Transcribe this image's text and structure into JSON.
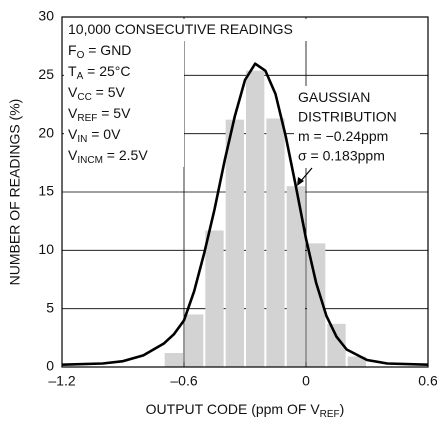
{
  "chart_data": {
    "type": "histogram",
    "ylabel": "NUMBER OF READINGS (%)",
    "xlabel": [
      {
        "t": "OUTPUT CODE (ppm OF V"
      },
      {
        "sub": "REF"
      },
      {
        "t": ")"
      }
    ],
    "bins": [
      -0.7,
      -0.6,
      -0.5,
      -0.4,
      -0.3,
      -0.2,
      -0.1,
      0,
      0.1,
      0.2,
      0.3
    ],
    "values": [
      1.2,
      4.5,
      11.7,
      21.2,
      25.4,
      21.3,
      15.5,
      10.6,
      3.7,
      0.9
    ],
    "color": "#d3d3d3",
    "curve": {
      "color": "#000000",
      "x": [
        -1.2,
        -1.0,
        -0.9,
        -0.8,
        -0.7,
        -0.65,
        -0.6,
        -0.55,
        -0.5,
        -0.45,
        -0.4,
        -0.35,
        -0.3,
        -0.25,
        -0.2,
        -0.15,
        -0.1,
        -0.05,
        0,
        0.05,
        0.1,
        0.15,
        0.2,
        0.3,
        0.4,
        0.6
      ],
      "y": [
        0.2,
        0.3,
        0.5,
        1.0,
        2.0,
        2.8,
        4.0,
        6.5,
        9.8,
        13.5,
        17.7,
        21.5,
        24.6,
        26,
        25.4,
        23.4,
        19.8,
        15.5,
        11,
        7.2,
        4.4,
        2.6,
        1.5,
        0.6,
        0.3,
        0.2
      ]
    },
    "xlim": [
      -1.2,
      0.6
    ],
    "xticks": [
      {
        "value": -1.2,
        "label": "–1.2"
      },
      {
        "value": -0.6,
        "label": "–0.6"
      },
      0,
      0.6
    ],
    "ylim": [
      0,
      30
    ],
    "yticks": [
      0,
      5,
      10,
      15,
      20,
      25,
      30
    ],
    "xgrid": [
      -0.6,
      0
    ],
    "grid": true,
    "annotations": [
      {
        "lines": [
          [
            {
              "t": "10,000 CONSECUTIVE READINGS"
            }
          ],
          [
            {
              "t": "F"
            },
            {
              "sub": "O"
            },
            {
              "t": " = GND"
            }
          ],
          [
            {
              "t": "T"
            },
            {
              "sub": "A"
            },
            {
              "t": " = 25°C"
            }
          ],
          [
            {
              "t": "V"
            },
            {
              "sub": "CC"
            },
            {
              "t": " = 5V"
            }
          ],
          [
            {
              "t": "V"
            },
            {
              "sub": "REF"
            },
            {
              "t": " = 5V"
            }
          ],
          [
            {
              "t": "V"
            },
            {
              "sub": "IN"
            },
            {
              "t": " = 0V"
            }
          ],
          [
            {
              "t": "V"
            },
            {
              "sub": "INCM"
            },
            {
              "t": " = 2.5V"
            }
          ]
        ]
      },
      {
        "lines": [
          [
            {
              "t": "GAUSSIAN"
            }
          ],
          [
            {
              "t": "DISTRIBUTION"
            }
          ],
          [
            {
              "t": "m = −0.24ppm"
            }
          ],
          [
            {
              "t": "σ = 0.183ppm"
            }
          ]
        ]
      }
    ]
  }
}
